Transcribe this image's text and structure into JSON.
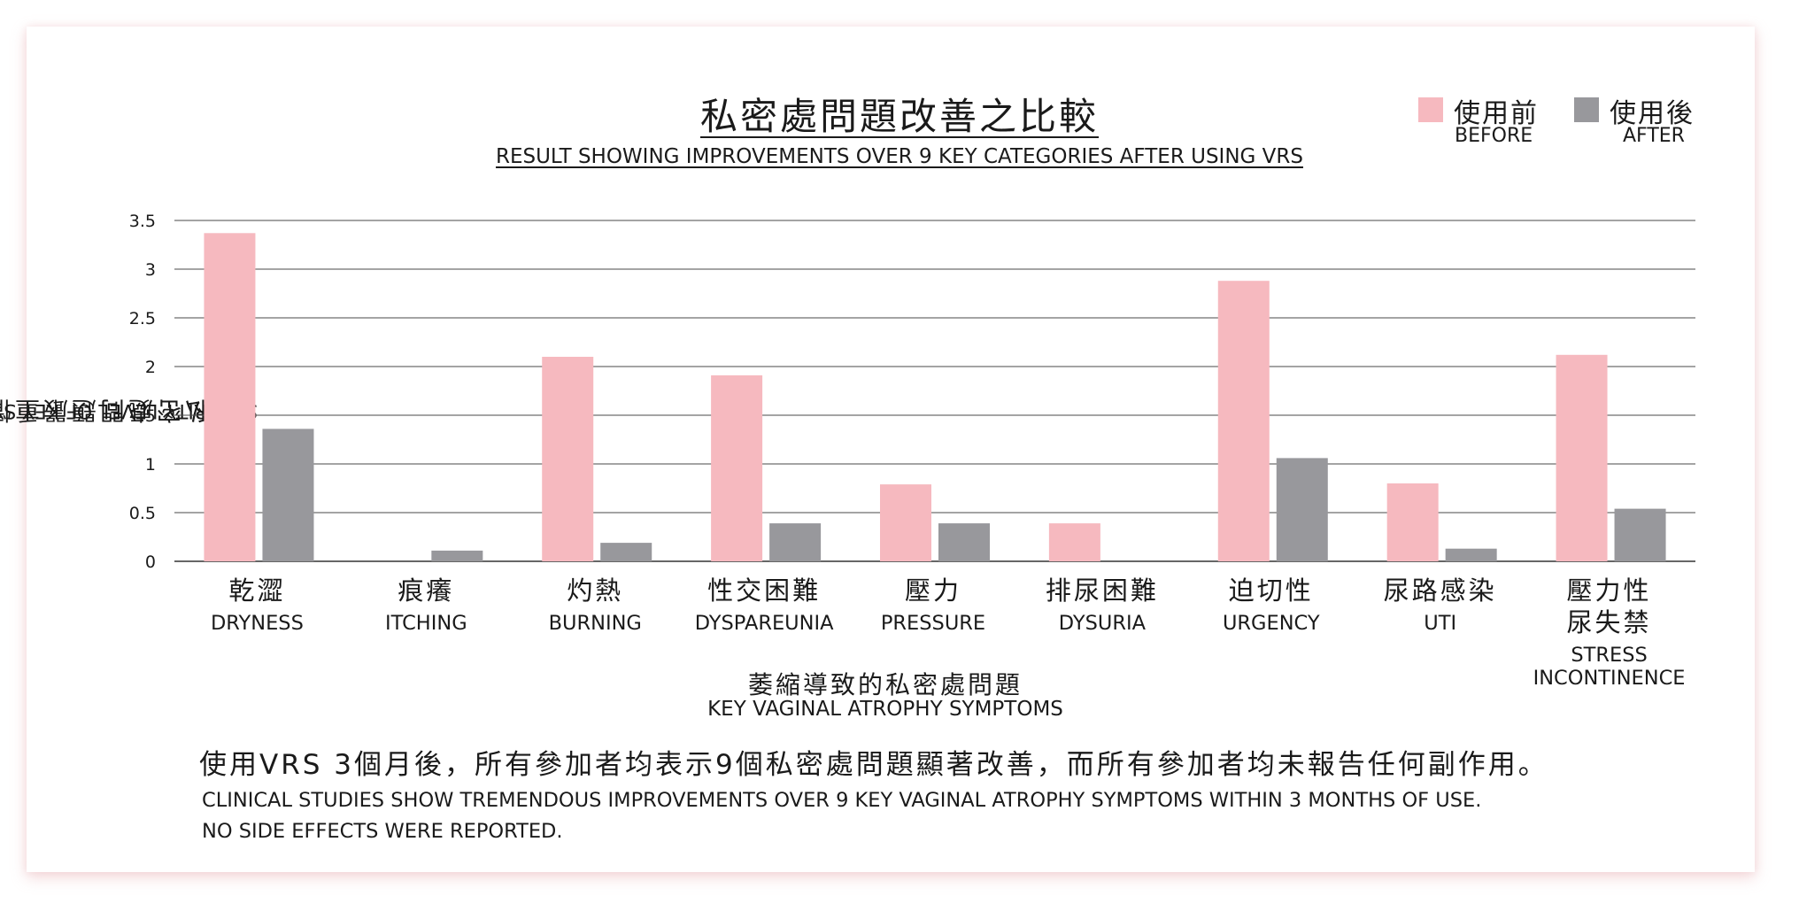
{
  "chart_data": {
    "type": "bar",
    "title": "私密處問題改善之比較",
    "subtitle": "RESULT SHOWING IMPROVEMENTS OVER 9 KEY CATEGORIES AFTER USING VRS",
    "xlabel_zh": "萎縮導致的私密處問題",
    "xlabel_en": "KEY VAGINAL ATROPHY SYMPTOMS",
    "ylabel_zh": "私密處問題嚴重情度",
    "ylabel_en": "SEVERITY LEVEL OF KEY SYMPTOMS",
    "ylim": [
      0,
      3.5
    ],
    "yticks": [
      "0",
      "0.5",
      "1",
      "1.5",
      "2",
      "2.5",
      "3",
      "3.5"
    ],
    "grid": true,
    "legend_position": "top-right",
    "categories": [
      {
        "zh": [
          "乾澀"
        ],
        "en": [
          "DRYNESS"
        ]
      },
      {
        "zh": [
          "痕癢"
        ],
        "en": [
          "ITCHING"
        ]
      },
      {
        "zh": [
          "灼熱"
        ],
        "en": [
          "BURNING"
        ]
      },
      {
        "zh": [
          "性交困難"
        ],
        "en": [
          "DYSPAREUNIA"
        ]
      },
      {
        "zh": [
          "壓力"
        ],
        "en": [
          "PRESSURE"
        ]
      },
      {
        "zh": [
          "排尿困難"
        ],
        "en": [
          "DYSURIA"
        ]
      },
      {
        "zh": [
          "迫切性"
        ],
        "en": [
          "URGENCY"
        ]
      },
      {
        "zh": [
          "尿路感染"
        ],
        "en": [
          "UTI"
        ]
      },
      {
        "zh": [
          "壓力性",
          "尿失禁"
        ],
        "en": [
          "STRESS",
          "INCONTINENCE"
        ]
      }
    ],
    "series": [
      {
        "name_zh": "使用前",
        "name": "BEFORE",
        "color": "#f6b9bf",
        "values": [
          3.37,
          0,
          2.1,
          1.91,
          0.79,
          0.39,
          2.88,
          0.8,
          2.12
        ]
      },
      {
        "name_zh": "使用後",
        "name": "AFTER",
        "color": "#98989c",
        "values": [
          1.36,
          0.11,
          0.19,
          0.39,
          0.39,
          0,
          1.06,
          0.13,
          0.54
        ]
      }
    ]
  },
  "note": {
    "zh": "使用VRS 3個月後，所有參加者均表示9個私密處問題顯著改善，而所有參加者均未報告任何副作用。",
    "en_line1": "CLINICAL STUDIES SHOW TREMENDOUS IMPROVEMENTS OVER 9 KEY VAGINAL ATROPHY SYMPTOMS WITHIN 3 MONTHS OF USE.",
    "en_line2": "NO SIDE EFFECTS WERE REPORTED."
  },
  "colors": {
    "grid": "#4a4a4a",
    "axis": "#333333"
  }
}
